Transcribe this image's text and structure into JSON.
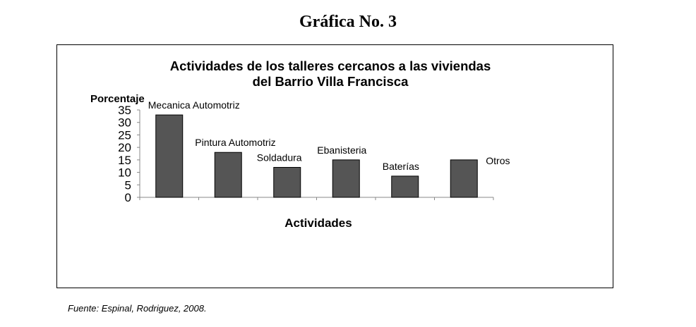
{
  "page": {
    "heading": "Gráfica No. 3",
    "source": "Fuente: Espinal, Rodriguez, 2008."
  },
  "chart_data": {
    "type": "bar",
    "title_line1": "Actividades de los talleres cercanos a las viviendas",
    "title_line2": "del Barrio Villa Francisca",
    "ylabel": "Porcentaje",
    "xlabel": "Actividades",
    "ylim": [
      0,
      35
    ],
    "yticks": [
      0,
      5,
      10,
      15,
      20,
      25,
      30,
      35
    ],
    "categories": [
      "Mecanica Automotriz",
      "Pintura Automotriz",
      "Soldadura",
      "Ebanisteria",
      "Baterías",
      "Otros"
    ],
    "values": [
      33,
      18,
      12,
      15,
      8.5,
      15
    ],
    "bar_color": "#555555",
    "grid": false,
    "legend": "none"
  }
}
